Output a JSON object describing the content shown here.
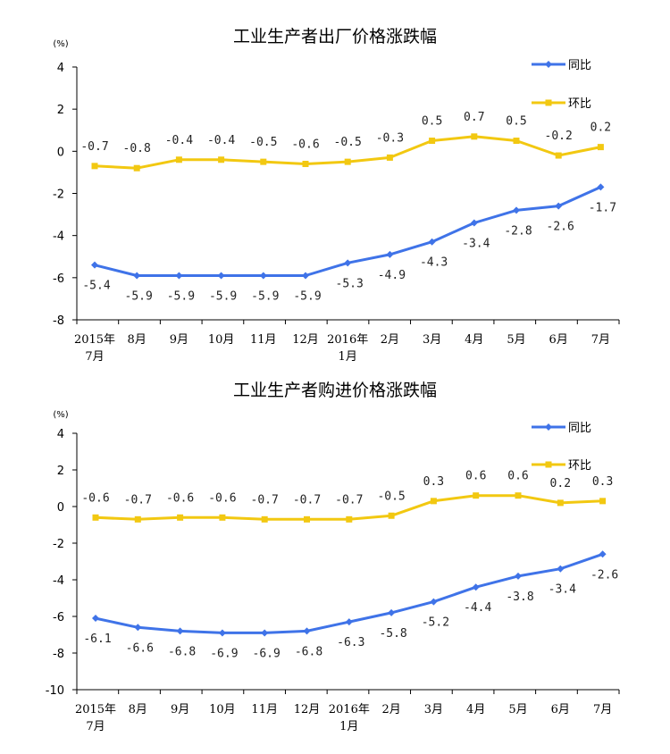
{
  "chart_data": [
    {
      "type": "line",
      "title": "工业生产者出厂价格涨跌幅",
      "unit": "(%)",
      "categories": [
        [
          "2015年",
          "7月"
        ],
        [
          "8月"
        ],
        [
          "9月"
        ],
        [
          "10月"
        ],
        [
          "11月"
        ],
        [
          "12月"
        ],
        [
          "2016年",
          "1月"
        ],
        [
          "2月"
        ],
        [
          "3月"
        ],
        [
          "4月"
        ],
        [
          "5月"
        ],
        [
          "6月"
        ],
        [
          "7月"
        ]
      ],
      "ylim": [
        -8,
        4
      ],
      "yticks": [
        -8,
        -6,
        -4,
        -2,
        0,
        2,
        4
      ],
      "legend_position": "top-right",
      "series": [
        {
          "name": "同比",
          "color": "#3f73e8",
          "marker": "diamond",
          "label_position": "below",
          "values": [
            -5.4,
            -5.9,
            -5.9,
            -5.9,
            -5.9,
            -5.9,
            -5.3,
            -4.9,
            -4.3,
            -3.4,
            -2.8,
            -2.6,
            -1.7
          ]
        },
        {
          "name": "环比",
          "color": "#f2c811",
          "marker": "square",
          "label_position": "above",
          "values": [
            -0.7,
            -0.8,
            -0.4,
            -0.4,
            -0.5,
            -0.6,
            -0.5,
            -0.3,
            0.5,
            0.7,
            0.5,
            -0.2,
            0.2
          ]
        }
      ]
    },
    {
      "type": "line",
      "title": "工业生产者购进价格涨跌幅",
      "unit": "(%)",
      "categories": [
        [
          "2015年",
          "7月"
        ],
        [
          "8月"
        ],
        [
          "9月"
        ],
        [
          "10月"
        ],
        [
          "11月"
        ],
        [
          "12月"
        ],
        [
          "2016年",
          "1月"
        ],
        [
          "2月"
        ],
        [
          "3月"
        ],
        [
          "4月"
        ],
        [
          "5月"
        ],
        [
          "6月"
        ],
        [
          "7月"
        ]
      ],
      "ylim": [
        -10,
        4
      ],
      "yticks": [
        -10,
        -8,
        -6,
        -4,
        -2,
        0,
        2,
        4
      ],
      "legend_position": "top-right",
      "series": [
        {
          "name": "同比",
          "color": "#3f73e8",
          "marker": "diamond",
          "label_position": "below",
          "values": [
            -6.1,
            -6.6,
            -6.8,
            -6.9,
            -6.9,
            -6.8,
            -6.3,
            -5.8,
            -5.2,
            -4.4,
            -3.8,
            -3.4,
            -2.6
          ]
        },
        {
          "name": "环比",
          "color": "#f2c811",
          "marker": "square",
          "label_position": "above",
          "values": [
            -0.6,
            -0.7,
            -0.6,
            -0.6,
            -0.7,
            -0.7,
            -0.7,
            -0.5,
            0.3,
            0.6,
            0.6,
            0.2,
            0.3
          ]
        }
      ]
    }
  ]
}
